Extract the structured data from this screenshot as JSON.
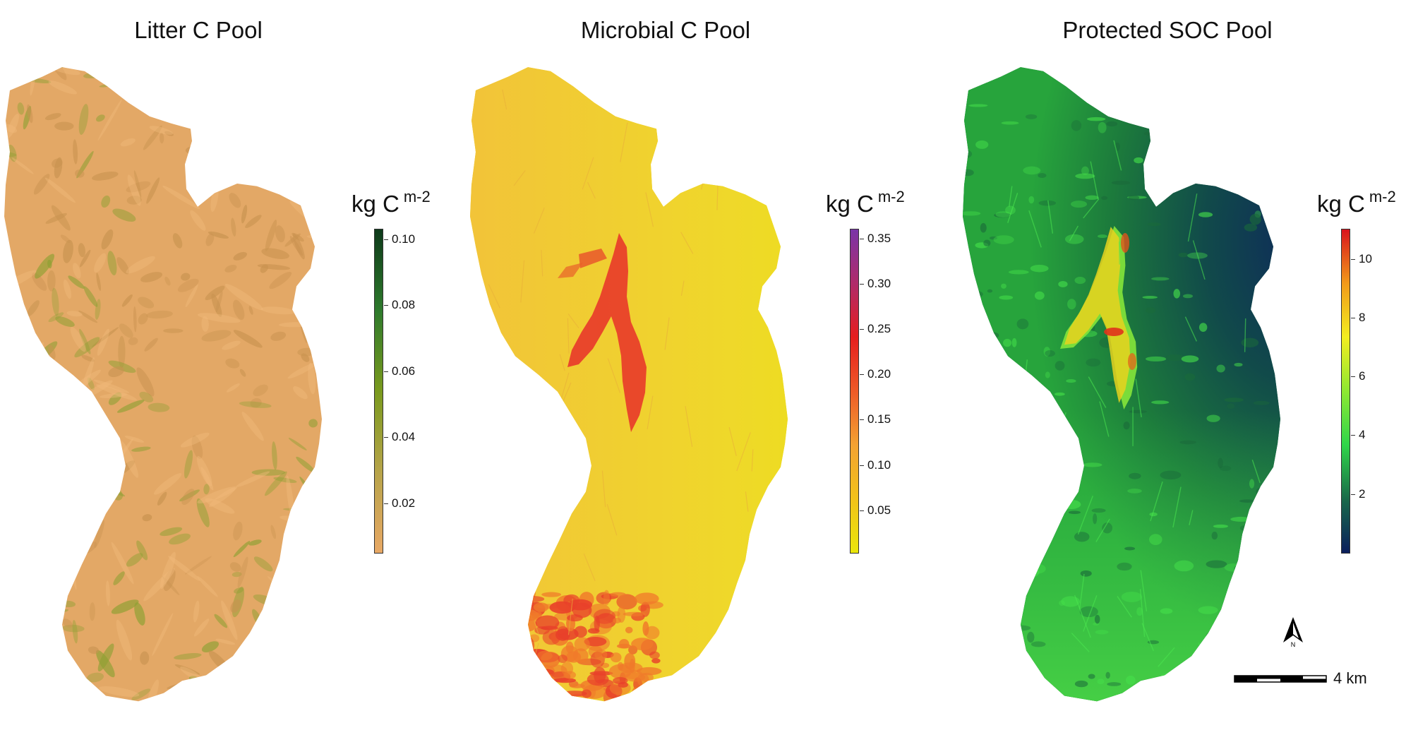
{
  "panels": [
    {
      "title": "Litter C Pool",
      "unit": "kg C",
      "unit_sup": "m-2",
      "ticks": [
        "0.10",
        "0.08",
        "0.06",
        "0.04",
        "0.02"
      ],
      "tick_values": [
        0.1,
        0.08,
        0.06,
        0.04,
        0.02
      ],
      "range": [
        0.005,
        0.103
      ],
      "colors": {
        "low": "#E8A865",
        "mid": "#7A9A1E",
        "high": "#0E3A1A",
        "base": "#E3A866"
      }
    },
    {
      "title": "Microbial C Pool",
      "unit": "kg C",
      "unit_sup": "m-2",
      "ticks": [
        "0.35",
        "0.30",
        "0.25",
        "0.20",
        "0.15",
        "0.10",
        "0.05"
      ],
      "tick_values": [
        0.35,
        0.3,
        0.25,
        0.2,
        0.15,
        0.1,
        0.05
      ],
      "range": [
        0.003,
        0.36
      ],
      "colors": {
        "low": "#E8E40A",
        "mid": "#EE2A1E",
        "high": "#7A35A8",
        "base": "#EDD52A"
      }
    },
    {
      "title": "Protected SOC Pool",
      "unit": "kg C",
      "unit_sup": "m-2",
      "ticks": [
        "10",
        "8",
        "6",
        "4",
        "2"
      ],
      "tick_values": [
        10,
        8,
        6,
        4,
        2
      ],
      "range": [
        0,
        11
      ],
      "colors": {
        "low": "#0B1F5C",
        "mid": "#2FD64A",
        "high": "#D8141C",
        "base": "#1E7A3A"
      }
    }
  ],
  "north_arrow": {
    "label": "N"
  },
  "scale_bar": {
    "label": "4 km"
  }
}
